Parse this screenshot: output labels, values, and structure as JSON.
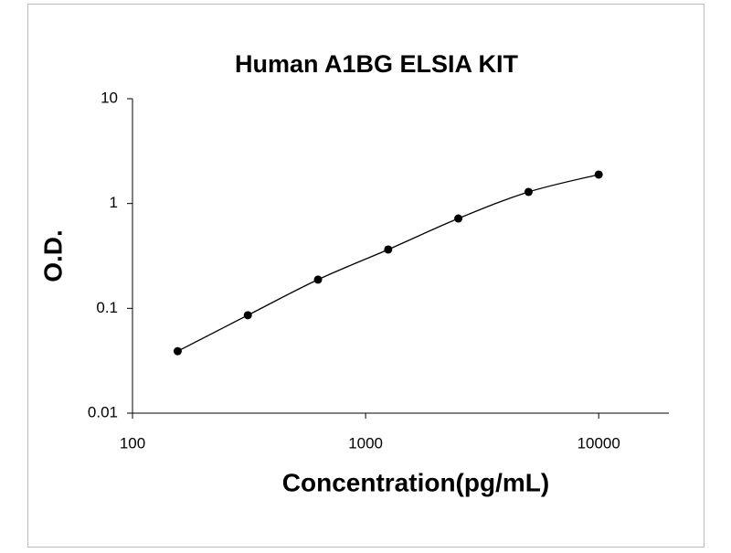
{
  "chart_data": {
    "type": "scatter",
    "title": "Human A1BG ELSIA KIT",
    "x_label": "Concentration(pg/mL)",
    "y_label": "O.D.",
    "xscale": "log",
    "yscale": "log",
    "xlim": [
      100,
      20000
    ],
    "xticks": [
      100,
      1000,
      10000
    ],
    "ylim": [
      0.01,
      10
    ],
    "yticks": [
      0.01,
      0.1,
      1,
      10
    ],
    "grid": false,
    "curve": true,
    "series": [
      {
        "color": "#000000",
        "x": [
          156.25,
          312.5,
          625,
          1250,
          2500,
          5000,
          10000
        ],
        "values": [
          0.039,
          0.086,
          0.188,
          0.364,
          0.72,
          1.29,
          1.89
        ]
      }
    ]
  }
}
